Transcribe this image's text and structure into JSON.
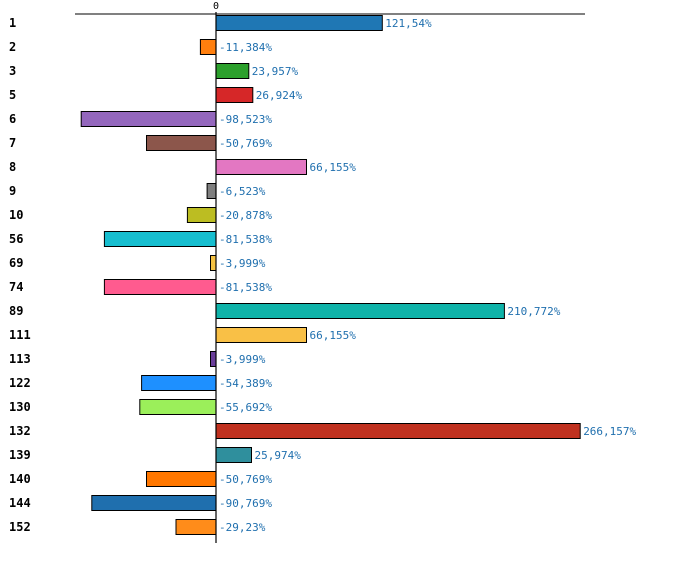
{
  "chart_data": {
    "type": "bar",
    "orientation": "horizontal",
    "title": "",
    "xlabel": "",
    "ylabel": "",
    "zero_tick_label": "0",
    "xlim": [
      -100,
      270
    ],
    "categories": [
      "1",
      "2",
      "3",
      "5",
      "6",
      "7",
      "8",
      "9",
      "10",
      "56",
      "69",
      "74",
      "89",
      "111",
      "113",
      "122",
      "130",
      "132",
      "139",
      "140",
      "144",
      "152"
    ],
    "values": [
      121.54,
      -11.384,
      23.957,
      26.924,
      -98.523,
      -50.769,
      66.155,
      -6.523,
      -20.878,
      -81.538,
      -3.999,
      -81.538,
      210.772,
      66.155,
      -3.999,
      -54.389,
      -55.692,
      266.157,
      25.974,
      -50.769,
      -90.769,
      -29.23
    ],
    "value_labels": [
      "121,54%",
      "-11,384%",
      "23,957%",
      "26,924%",
      "-98,523%",
      "-50,769%",
      "66,155%",
      "-6,523%",
      "-20,878%",
      "-81,538%",
      "-3,999%",
      "-81,538%",
      "210,772%",
      "66,155%",
      "-3,999%",
      "-54,389%",
      "-55,692%",
      "266,157%",
      "25,974%",
      "-50,769%",
      "-90,769%",
      "-29,23%"
    ],
    "colors": [
      "#1f77b4",
      "#ff7f0e",
      "#2ca02c",
      "#d62728",
      "#9467bd",
      "#8c564b",
      "#e377c2",
      "#7f7f7f",
      "#bcbd22",
      "#17becf",
      "#f5c242",
      "#ff5b8f",
      "#0fb3a9",
      "#f9c046",
      "#6a3d9a",
      "#1e90ff",
      "#9bef5a",
      "#c0311f",
      "#2f8f9d",
      "#ff7700",
      "#1f6fae",
      "#ff8c1a"
    ],
    "label_color": "#1f6fae"
  }
}
